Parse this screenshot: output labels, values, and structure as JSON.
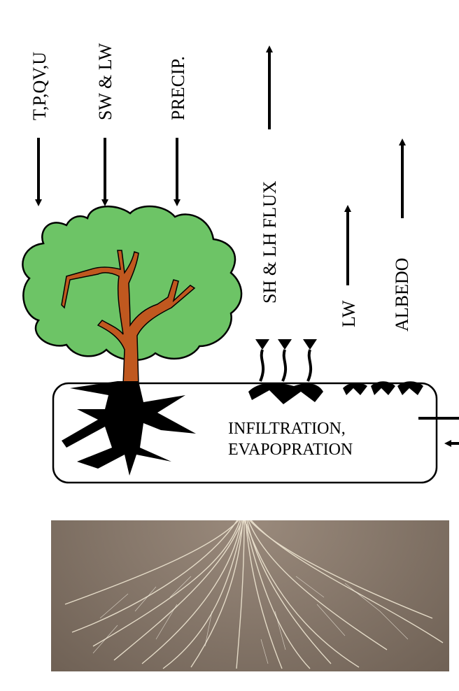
{
  "forcing_labels": [
    "T,P,QV,U",
    "SW & LW",
    "PRECIP."
  ],
  "flux_label": "SH & LH FLUX",
  "lw_label": "LW",
  "albedo_label": "ALBEDO",
  "soil_box": {
    "line1": "INFILTRATION,",
    "line2": "EVAPOPRATION"
  },
  "colors": {
    "canopy": "#6dc466",
    "trunk": "#c0581f",
    "roots": "#000000",
    "soil_photo": "#87786b",
    "photo_roots": "#efe6d2"
  }
}
